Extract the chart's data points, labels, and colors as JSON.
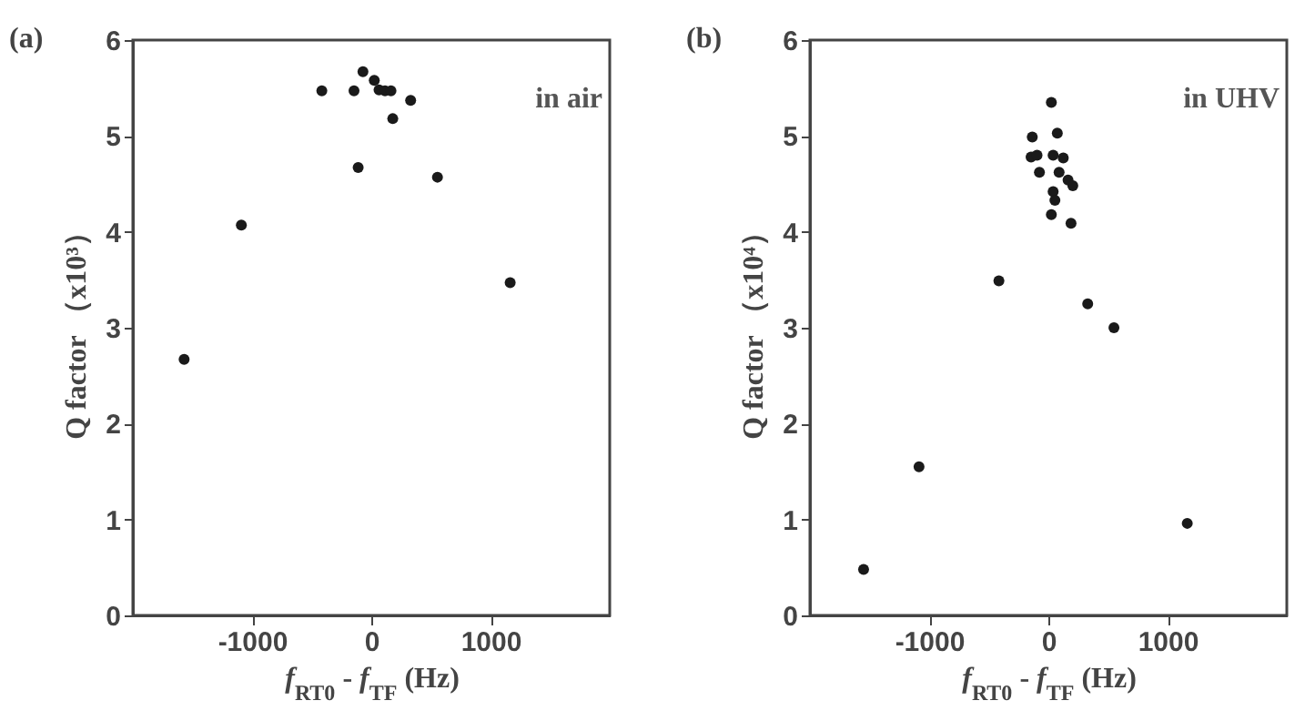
{
  "chart_data": [
    {
      "type": "scatter",
      "title": "(a)",
      "xlabel": "f$_{RT0}$ - f$_{TF}$ (Hz)",
      "ylabel": "Q factor （x10³）",
      "annotations": [
        "in air"
      ],
      "marker": "circle",
      "grid": false,
      "xlim": [
        -2000,
        2000
      ],
      "xticks": [
        -1000,
        0,
        1000
      ],
      "ylim": [
        0,
        6
      ],
      "yticks": [
        0,
        1,
        2,
        3,
        4,
        5,
        6
      ],
      "series": [
        {
          "color": "#1a1a1a",
          "x": [
            -1570,
            -1090,
            -415,
            -145,
            -70,
            -110,
            25,
            65,
            115,
            165,
            180,
            330,
            555,
            1165
          ],
          "values": [
            2.67,
            4.07,
            5.47,
            5.47,
            5.67,
            4.67,
            5.58,
            5.48,
            5.47,
            5.47,
            5.18,
            5.37,
            4.57,
            3.47
          ]
        }
      ]
    },
    {
      "type": "scatter",
      "title": "(b)",
      "xlabel": "f$_{RT0}$ - f$_{TF}$ (Hz)",
      "ylabel": "Q factor （x10⁴）",
      "annotations": [
        "in UHV"
      ],
      "marker": "circle",
      "grid": false,
      "xlim": [
        -2000,
        2000
      ],
      "xticks": [
        -1000,
        0,
        1000
      ],
      "ylim": [
        0,
        6
      ],
      "yticks": [
        0,
        1,
        2,
        3,
        4,
        5,
        6
      ],
      "series": [
        {
          "color": "#1a1a1a",
          "x": [
            -1550,
            -1085,
            -415,
            330,
            550,
            1165,
            25,
            -135,
            75,
            -145,
            -95,
            40,
            125,
            -75,
            90,
            165,
            205,
            40,
            55,
            25,
            190
          ],
          "values": [
            0.48,
            1.55,
            3.49,
            3.25,
            3.0,
            0.96,
            5.35,
            4.99,
            5.03,
            4.78,
            4.8,
            4.8,
            4.77,
            4.62,
            4.62,
            4.54,
            4.48,
            4.42,
            4.33,
            4.18,
            4.09
          ]
        }
      ]
    }
  ]
}
